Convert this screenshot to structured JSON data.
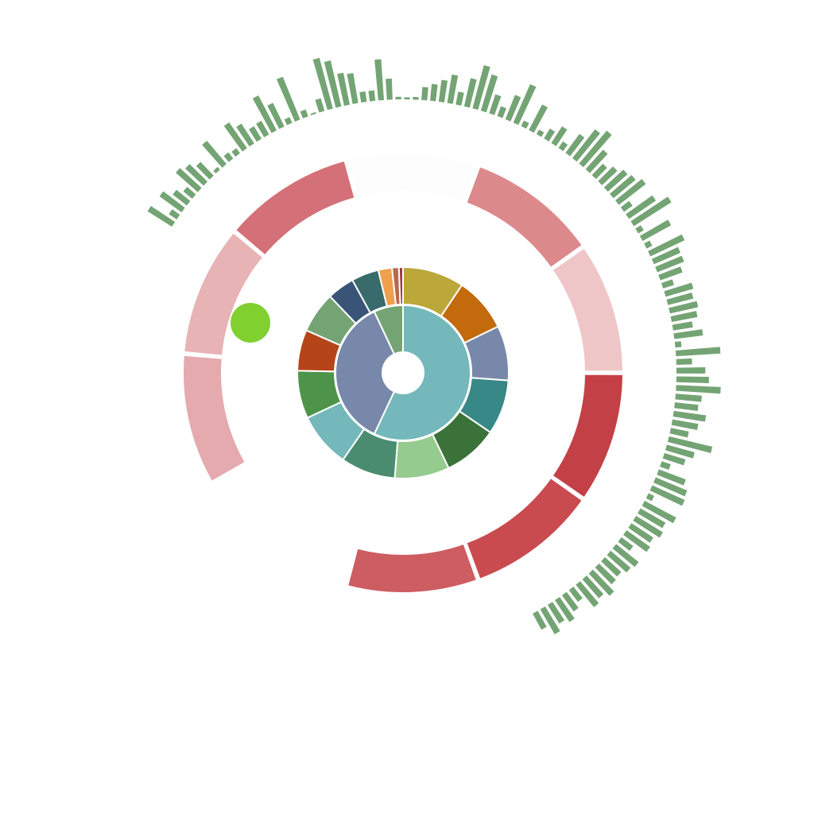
{
  "chart_data": {
    "type": "sunburst",
    "center_hole": true,
    "inner_ring": {
      "colors": [
        "#74b8bb",
        "#7788aa",
        "#74a474"
      ],
      "values": [
        57,
        36,
        7
      ]
    },
    "middle_ring": {
      "colors": [
        "#bba73a",
        "#c26a0c",
        "#7788aa",
        "#388888",
        "#3a723a",
        "#95cb8e",
        "#4a8c70",
        "#74b8bb",
        "#4d944a",
        "#b54519",
        "#74a474",
        "#3a5478",
        "#396a6c",
        "#efa04c",
        "#b86a4c",
        "#9c3a3a"
      ],
      "values": [
        9,
        8,
        8,
        8,
        8,
        8,
        8,
        8,
        7,
        6,
        6,
        4,
        4,
        2,
        1,
        0.6
      ]
    },
    "outer_ring": {
      "colors": [
        "#e4aaae",
        "#e8b3b5",
        "#d47077",
        "#fdfdfd",
        "#dc898c",
        "#efc6c8",
        "#c34046",
        "#c94b50",
        "#cd5d61"
      ],
      "values": [
        35,
        35,
        35,
        35,
        35,
        35,
        35,
        35,
        35
      ]
    },
    "bar_ring": {
      "color": "#74a474",
      "values": [
        0.55,
        0.18,
        0.52,
        0.34,
        0.22,
        0.56,
        0.48,
        0.36,
        0.07,
        0.58,
        0.15,
        0.12,
        0.6,
        0.45,
        0.28,
        0.3,
        0.75,
        0.5,
        0.12,
        0.88,
        0.14,
        0.03,
        0.25,
        1.0,
        0.9,
        0.62,
        0.58,
        0.2,
        0.2,
        0.78,
        0.4,
        0.05,
        0.04,
        0.05,
        0.25,
        0.32,
        0.42,
        0.55,
        0.25,
        0.55,
        0.85,
        0.72,
        0.38,
        0.2,
        0.5,
        0.8,
        0.12,
        0.55,
        0.1,
        0.22,
        0.38,
        0.15,
        0.45,
        0.7,
        0.82,
        0.5,
        0.3,
        0.4,
        0.5,
        0.55,
        0.65,
        0.2,
        0.62,
        0.85,
        0.12,
        0.62,
        0.12,
        0.72,
        0.55,
        0.55,
        0.45,
        0.22,
        0.55,
        0.5,
        0.55,
        0.5,
        0.38,
        0.55,
        0.12,
        0.85,
        0.3,
        0.55,
        0.62,
        0.85,
        0.5,
        0.45,
        0.62,
        0.5,
        0.35,
        0.85,
        0.55,
        0.42,
        0.18,
        0.55,
        0.65,
        0.68,
        0.12,
        0.68,
        0.55,
        0.6,
        0.5,
        0.55,
        0.28,
        0.55,
        0.5,
        0.42,
        0.45,
        0.58,
        0.48,
        0.55,
        0.28,
        0.38,
        0.5,
        0.42,
        0.55,
        0.35
      ]
    },
    "marker": {
      "color": "#80d030"
    }
  }
}
